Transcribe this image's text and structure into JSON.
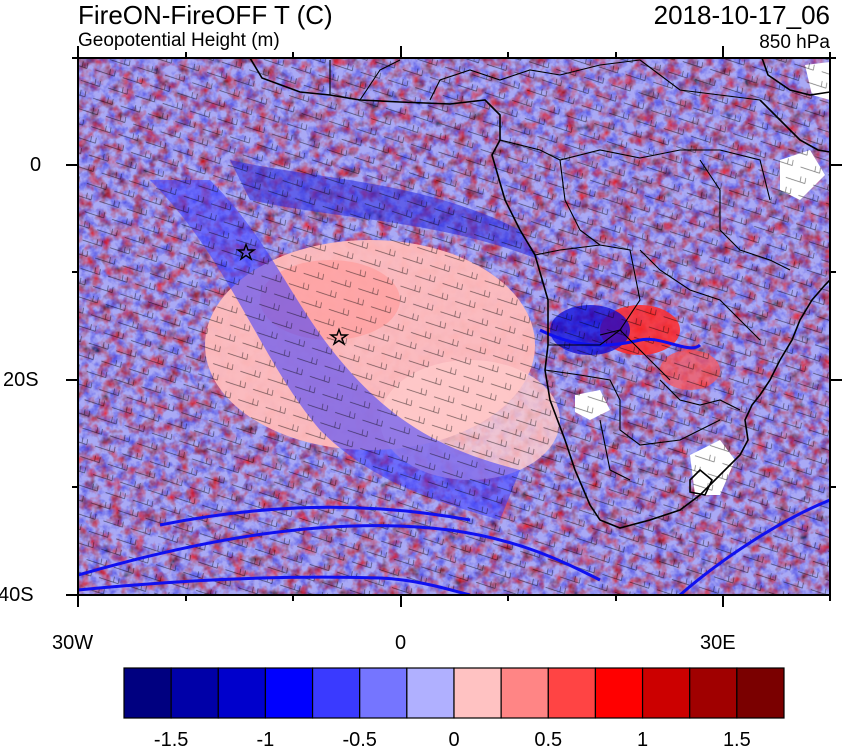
{
  "header": {
    "title": "FireON-FireOFF T (C)",
    "subtitle": "Geopotential Height (m)",
    "datetime": "2018-10-17_06",
    "level": "850 hPa"
  },
  "map": {
    "projection": "lat-lon",
    "lon_range": [
      -30,
      40
    ],
    "lat_range": [
      -40,
      10
    ],
    "lon_ticks": [
      {
        "value": -30,
        "label": "30W"
      },
      {
        "value": 0,
        "label": "0"
      },
      {
        "value": 30,
        "label": "30E"
      }
    ],
    "lat_ticks": [
      {
        "value": 0,
        "label": "0"
      },
      {
        "value": -20,
        "label": "20S"
      },
      {
        "value": -40,
        "label": "40S"
      }
    ],
    "markers": [
      {
        "name": "star-marker",
        "lon": -14.5,
        "lat": -8
      },
      {
        "name": "star-marker",
        "lon": -5.7,
        "lat": -15.9
      }
    ],
    "overlays": [
      "temperature-difference-shading",
      "wind-barbs",
      "geopotential-height-contours",
      "coastlines",
      "country-borders"
    ]
  },
  "colorbar": {
    "colors": [
      "#000080",
      "#0000a8",
      "#0000cc",
      "#0000ff",
      "#3a3aff",
      "#7575ff",
      "#b0b0ff",
      "#ffc2c2",
      "#ff8585",
      "#ff4444",
      "#ff0000",
      "#cc0000",
      "#a00000",
      "#7a0000"
    ],
    "labels": [
      "-1.5",
      "-1",
      "-0.5",
      "0",
      "0.5",
      "1",
      "1.5"
    ]
  }
}
